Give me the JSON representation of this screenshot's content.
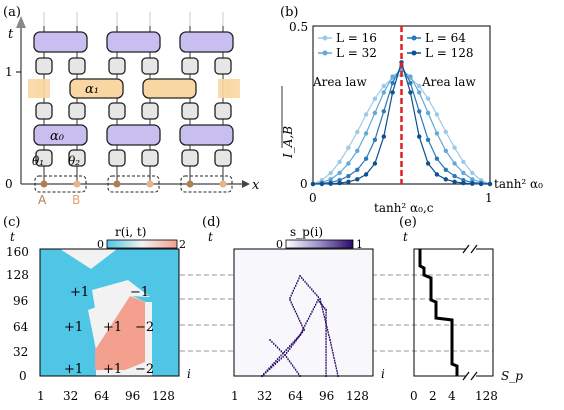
{
  "panels": {
    "a": {
      "label": "(a)",
      "y_axis_label": "t",
      "x_axis_label": "x",
      "y_ticks": [
        "0",
        "1"
      ],
      "gate_labels": [
        "α₁",
        "α₀",
        "θ₁",
        "θ₂"
      ],
      "site_labels": [
        "A",
        "B"
      ],
      "colors": {
        "alpha1": "#f9d7a2",
        "alpha0": "#c9bef0",
        "single": "#e6e6e6",
        "siteA": "#b07e52",
        "siteB": "#e7b48a"
      }
    },
    "b": {
      "label": "(b)",
      "y_ticks": [
        "0.5",
        "0"
      ],
      "x_ticks": [
        "0",
        "1"
      ],
      "x_axis_label": "tanh² α₀",
      "critical_label": "tanh² α₀,c",
      "y_axis_label": "I_A,B",
      "annotations": [
        "Area law",
        "Area law"
      ],
      "legend": [
        "L = 16",
        "L = 64",
        "L = 32",
        "L = 128"
      ],
      "colors": {
        "L16": "#9ccae6",
        "L32": "#62a8d6",
        "L64": "#2a79b8",
        "L128": "#0d4f8f",
        "critical": "#e02020"
      }
    },
    "c": {
      "label": "(c)",
      "colorbar_label": "r(i, t)",
      "colorbar_ticks": [
        "0",
        "2"
      ],
      "y_axis_label": "t",
      "x_axis_label": "i",
      "y_ticks": [
        "160",
        "128",
        "96",
        "64",
        "32",
        "0"
      ],
      "x_ticks": [
        "1",
        "32",
        "64",
        "96",
        "128"
      ],
      "region_labels": [
        "+1",
        "−1",
        "+1",
        "+1",
        "−2",
        "+1",
        "+1",
        "−2"
      ],
      "colors": {
        "zero": "#4fc6e6",
        "one": "#f2f2f2",
        "two": "#f4a08e"
      }
    },
    "d": {
      "label": "(d)",
      "colorbar_label": "s_p(i)",
      "colorbar_ticks": [
        "0",
        "1"
      ],
      "y_axis_label": "t",
      "x_axis_label": "i",
      "x_ticks": [
        "1",
        "32",
        "64",
        "96",
        "128"
      ],
      "colors": {
        "low": "#ffffff",
        "high": "#2a0a6a"
      }
    },
    "e": {
      "label": "(e)",
      "y_axis_label": "t",
      "x_axis_label": "S_p",
      "x_ticks": [
        "0",
        "2",
        "4",
        "128"
      ]
    }
  },
  "chart_data": {
    "type": "line",
    "title": "",
    "xlabel": "tanh² α₀",
    "ylabel": "I_A,B",
    "xlim": [
      0,
      1
    ],
    "ylim": [
      0,
      0.5
    ],
    "critical_x": 0.5,
    "series": [
      {
        "name": "L = 16",
        "x": [
          0,
          0.05,
          0.1,
          0.15,
          0.2,
          0.25,
          0.3,
          0.35,
          0.4,
          0.45,
          0.5,
          0.55,
          0.6,
          0.65,
          0.7,
          0.75,
          0.8,
          0.85,
          0.9,
          0.95,
          1
        ],
        "values": [
          0,
          0.012,
          0.035,
          0.07,
          0.115,
          0.165,
          0.22,
          0.27,
          0.31,
          0.335,
          0.345,
          0.335,
          0.31,
          0.27,
          0.22,
          0.165,
          0.115,
          0.07,
          0.035,
          0.012,
          0
        ]
      },
      {
        "name": "L = 32",
        "x": [
          0,
          0.05,
          0.1,
          0.15,
          0.2,
          0.25,
          0.3,
          0.35,
          0.4,
          0.45,
          0.5,
          0.55,
          0.6,
          0.65,
          0.7,
          0.75,
          0.8,
          0.85,
          0.9,
          0.95,
          1
        ],
        "values": [
          0,
          0.005,
          0.015,
          0.035,
          0.065,
          0.105,
          0.16,
          0.225,
          0.29,
          0.34,
          0.36,
          0.34,
          0.29,
          0.225,
          0.16,
          0.105,
          0.065,
          0.035,
          0.015,
          0.005,
          0
        ]
      },
      {
        "name": "L = 64",
        "x": [
          0,
          0.05,
          0.1,
          0.15,
          0.2,
          0.25,
          0.3,
          0.35,
          0.4,
          0.45,
          0.5,
          0.55,
          0.6,
          0.65,
          0.7,
          0.75,
          0.8,
          0.85,
          0.9,
          0.95,
          1
        ],
        "values": [
          0,
          0.002,
          0.005,
          0.012,
          0.025,
          0.045,
          0.08,
          0.14,
          0.23,
          0.32,
          0.375,
          0.32,
          0.23,
          0.14,
          0.08,
          0.045,
          0.025,
          0.012,
          0.005,
          0.002,
          0
        ]
      },
      {
        "name": "L = 128",
        "x": [
          0,
          0.05,
          0.1,
          0.15,
          0.2,
          0.25,
          0.3,
          0.35,
          0.4,
          0.45,
          0.5,
          0.55,
          0.6,
          0.65,
          0.7,
          0.75,
          0.8,
          0.85,
          0.9,
          0.95,
          1
        ],
        "values": [
          0,
          0,
          0.001,
          0.003,
          0.007,
          0.015,
          0.03,
          0.065,
          0.15,
          0.29,
          0.385,
          0.29,
          0.15,
          0.065,
          0.03,
          0.015,
          0.007,
          0.003,
          0.001,
          0,
          0
        ]
      }
    ]
  }
}
